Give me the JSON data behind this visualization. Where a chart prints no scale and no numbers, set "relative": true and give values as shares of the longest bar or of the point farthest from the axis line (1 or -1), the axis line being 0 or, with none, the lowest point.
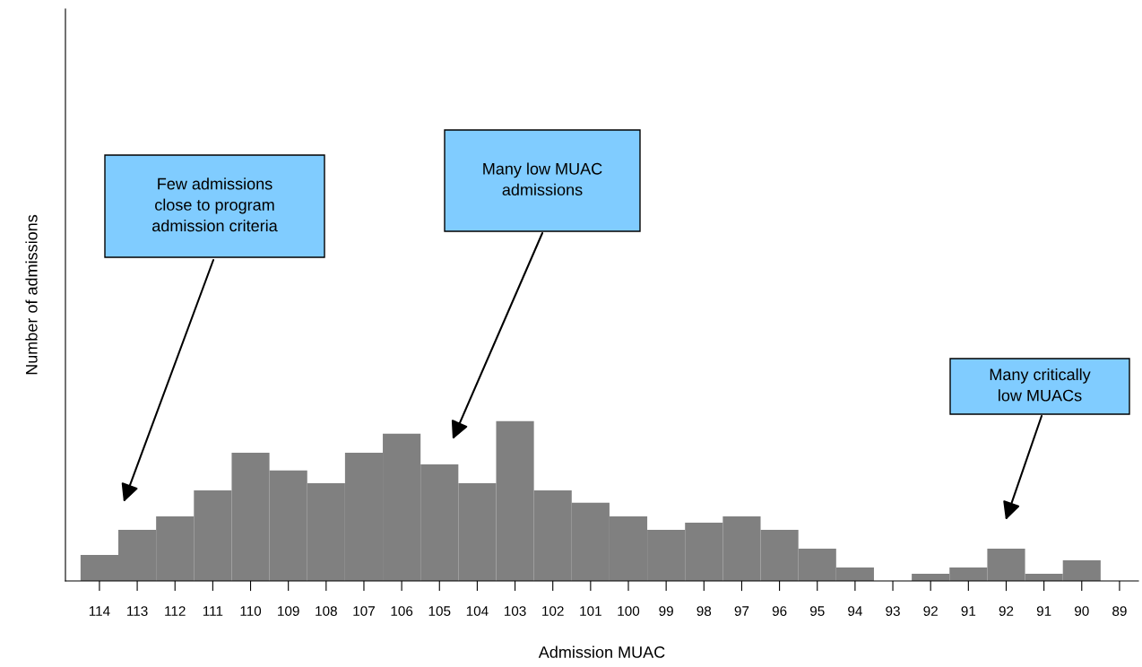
{
  "chart_data": {
    "type": "bar",
    "relative": true,
    "xlabel": "Admission MUAC",
    "ylabel": "Number of admissions",
    "categories": [
      "114",
      "113",
      "112",
      "111",
      "110",
      "109",
      "108",
      "107",
      "106",
      "105",
      "104",
      "103",
      "102",
      "101",
      "100",
      "99",
      "98",
      "97",
      "96",
      "95",
      "94",
      "93",
      "92",
      "91",
      "92",
      "91",
      "90",
      "89"
    ],
    "values": [
      0.163,
      0.32,
      0.404,
      0.567,
      0.803,
      0.691,
      0.612,
      0.803,
      0.921,
      0.73,
      0.612,
      1,
      0.567,
      0.489,
      0.404,
      0.32,
      0.365,
      0.404,
      0.32,
      0.202,
      0.084,
      null,
      0.045,
      0.084,
      0.202,
      0.045,
      0.129,
      null
    ],
    "color": "#808080",
    "grid": false,
    "legend": false,
    "annotations": [
      "Few admissions\nclose to program\nadmission criteria",
      "Many low MUAC\nadmissions",
      "Many critically\nlow MUACs"
    ]
  }
}
